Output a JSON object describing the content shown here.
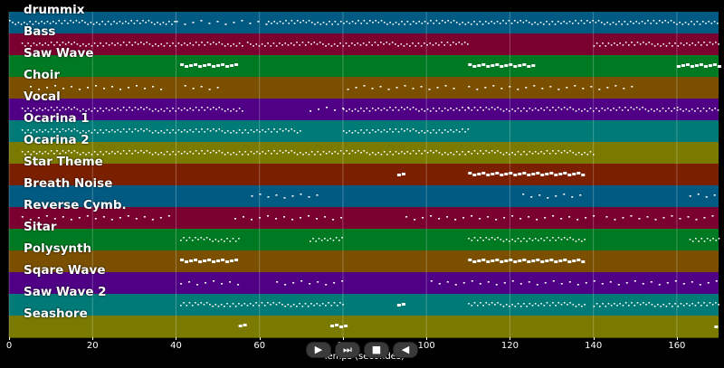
{
  "tracks": [
    {
      "name": "drummix",
      "color": "#005a82"
    },
    {
      "name": "Bass",
      "color": "#7a0030"
    },
    {
      "name": "Saw Wave",
      "color": "#007a22"
    },
    {
      "name": "Choir",
      "color": "#7a5000"
    },
    {
      "name": "Vocal",
      "color": "#4f0085"
    },
    {
      "name": "Ocarina 1",
      "color": "#007a76"
    },
    {
      "name": "Ocarina 2",
      "color": "#7a7a00"
    },
    {
      "name": "Star Theme",
      "color": "#7a2000"
    },
    {
      "name": "Breath Noise",
      "color": "#005a82"
    },
    {
      "name": "Reverse Cymb.",
      "color": "#7a0030"
    },
    {
      "name": "Sitar",
      "color": "#007a22"
    },
    {
      "name": "Polysynth",
      "color": "#7a5000"
    },
    {
      "name": "Sqare Wave",
      "color": "#4f0085"
    },
    {
      "name": "Saw Wave 2",
      "color": "#007a76"
    },
    {
      "name": "Seashore",
      "color": "#7a7a00"
    }
  ],
  "x_axis": {
    "label": "Temps (secondes)",
    "min": 0,
    "max": 170,
    "ticks": [
      "0",
      "20",
      "40",
      "60",
      "80",
      "100",
      "120",
      "140",
      "160"
    ],
    "tick_values": [
      0,
      20,
      40,
      60,
      80,
      100,
      120,
      140,
      160
    ]
  },
  "note_segments": [
    [
      [
        0,
        40,
        "dense"
      ],
      [
        40,
        62,
        "sparse"
      ],
      [
        62,
        170,
        "dense"
      ]
    ],
    [
      [
        3,
        56,
        "dense"
      ],
      [
        57,
        110,
        "dense"
      ],
      [
        140,
        170,
        "dense"
      ]
    ],
    [
      [
        41,
        55,
        "block"
      ],
      [
        110,
        126,
        "block"
      ],
      [
        160,
        170,
        "block"
      ]
    ],
    [
      [
        5,
        38,
        "sparse"
      ],
      [
        42,
        51,
        "sparse"
      ],
      [
        81,
        107,
        "sparse"
      ],
      [
        110,
        150,
        "sparse"
      ]
    ],
    [
      [
        3,
        56,
        "dense"
      ],
      [
        72,
        80,
        "sparse"
      ],
      [
        80,
        110,
        "dense"
      ],
      [
        110,
        160,
        "dense"
      ],
      [
        160,
        170,
        "dense"
      ]
    ],
    [
      [
        3,
        70,
        "dense"
      ],
      [
        80,
        110,
        "dense"
      ]
    ],
    [
      [
        3,
        110,
        "dense"
      ],
      [
        110,
        140,
        "dense"
      ]
    ],
    [
      [
        93,
        95,
        "block"
      ],
      [
        110,
        138,
        "block"
      ]
    ],
    [
      [
        58,
        74,
        "sparse"
      ],
      [
        123,
        137,
        "sparse"
      ],
      [
        163,
        170,
        "sparse"
      ]
    ],
    [
      [
        3,
        40,
        "sparse"
      ],
      [
        54,
        80,
        "sparse"
      ],
      [
        95,
        140,
        "sparse"
      ],
      [
        143,
        170,
        "sparse"
      ]
    ],
    [
      [
        41,
        55,
        "dense"
      ],
      [
        72,
        80,
        "dense"
      ],
      [
        110,
        138,
        "dense"
      ],
      [
        163,
        170,
        "dense"
      ]
    ],
    [
      [
        41,
        55,
        "block"
      ],
      [
        110,
        138,
        "block"
      ]
    ],
    [
      [
        41,
        55,
        "sparse"
      ],
      [
        64,
        80,
        "sparse"
      ],
      [
        101,
        170,
        "sparse"
      ]
    ],
    [
      [
        41,
        80,
        "dense"
      ],
      [
        93,
        95,
        "block"
      ],
      [
        110,
        138,
        "dense"
      ],
      [
        140,
        170,
        "dense"
      ]
    ],
    [
      [
        55,
        57,
        "block"
      ],
      [
        77,
        81,
        "block"
      ],
      [
        169,
        170,
        "block"
      ]
    ]
  ],
  "controls": [
    {
      "name": "play-button",
      "glyph": "▶"
    },
    {
      "name": "fast-forward-button",
      "glyph": "⏭"
    },
    {
      "name": "stop-button",
      "glyph": "■"
    },
    {
      "name": "rewind-button",
      "glyph": "◀"
    }
  ]
}
